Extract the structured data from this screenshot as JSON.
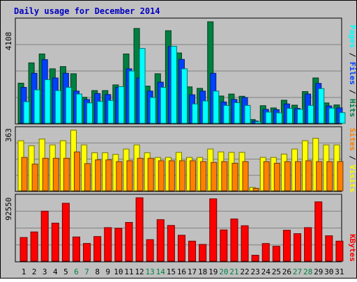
{
  "chart_data": [
    {
      "type": "bar",
      "title": "Daily usage for December 2014",
      "categories": [
        "1",
        "2",
        "3",
        "4",
        "5",
        "6",
        "7",
        "8",
        "9",
        "10",
        "11",
        "12",
        "13",
        "14",
        "15",
        "16",
        "17",
        "18",
        "19",
        "20",
        "21",
        "22",
        "23",
        "24",
        "25",
        "26",
        "27",
        "28",
        "29",
        "30",
        "31"
      ],
      "weekend_days": [
        "6",
        "7",
        "13",
        "14",
        "20",
        "21",
        "27",
        "28"
      ],
      "ymax_label": "4108",
      "ylim": [
        0,
        4108
      ],
      "right_axis": {
        "parts": [
          "Pages",
          "Files",
          "Hits"
        ],
        "separator": " / "
      },
      "series": [
        {
          "name": "Hits",
          "color": "#008040",
          "values": [
            1620,
            2440,
            2800,
            2200,
            2290,
            2000,
            1050,
            1320,
            1320,
            1550,
            2800,
            3830,
            1500,
            2000,
            3740,
            2840,
            1470,
            1410,
            4100,
            1100,
            1180,
            1090,
            150,
            710,
            620,
            930,
            730,
            1280,
            1830,
            820,
            740
          ]
        },
        {
          "name": "Files",
          "color": "#0040ff",
          "values": [
            1450,
            2020,
            2570,
            1830,
            2020,
            1300,
            960,
            1200,
            1160,
            1450,
            2200,
            1830,
            1300,
            1660,
            3100,
            2580,
            1150,
            1300,
            2020,
            860,
            960,
            1040,
            90,
            560,
            550,
            780,
            600,
            1180,
            1610,
            700,
            620
          ]
        },
        {
          "name": "Pages",
          "color": "#00ffff",
          "values": [
            870,
            1350,
            1760,
            1320,
            1450,
            1180,
            820,
            880,
            920,
            1480,
            2110,
            3020,
            1040,
            1450,
            3110,
            2200,
            780,
            900,
            1300,
            720,
            830,
            720,
            60,
            450,
            420,
            600,
            560,
            720,
            1400,
            610,
            430
          ]
        }
      ]
    },
    {
      "type": "bar",
      "ymax_label": "363",
      "ylim": [
        0,
        363
      ],
      "right_axis": {
        "parts": [
          "Sites",
          "Visits"
        ],
        "separator": " / "
      },
      "series": [
        {
          "name": "Visits",
          "color": "#ffff00",
          "values": [
            300,
            270,
            310,
            275,
            300,
            363,
            275,
            228,
            228,
            218,
            250,
            275,
            228,
            200,
            200,
            230,
            200,
            200,
            250,
            233,
            230,
            230,
            20,
            200,
            200,
            220,
            250,
            300,
            315,
            275,
            275
          ]
        },
        {
          "name": "Sites",
          "color": "#ff8000",
          "values": [
            200,
            160,
            195,
            195,
            195,
            233,
            163,
            185,
            185,
            175,
            180,
            195,
            195,
            180,
            180,
            180,
            180,
            175,
            170,
            175,
            165,
            175,
            15,
            175,
            165,
            175,
            175,
            180,
            175,
            175,
            175
          ]
        }
      ]
    },
    {
      "type": "bar",
      "ymax_label": "92550",
      "ylim": [
        0,
        92550
      ],
      "right_axis": {
        "parts": [
          "KBytes"
        ],
        "separator": ""
      },
      "series": [
        {
          "name": "KBytes",
          "color": "#ff0000",
          "values": [
            34500,
            42600,
            72900,
            55500,
            84500,
            35300,
            25800,
            35900,
            48900,
            48000,
            56500,
            92550,
            31400,
            60600,
            52100,
            37800,
            29200,
            24400,
            91000,
            45600,
            61600,
            51700,
            8600,
            25700,
            21700,
            45100,
            40100,
            48900,
            86600,
            37000,
            29200
          ]
        }
      ]
    }
  ]
}
